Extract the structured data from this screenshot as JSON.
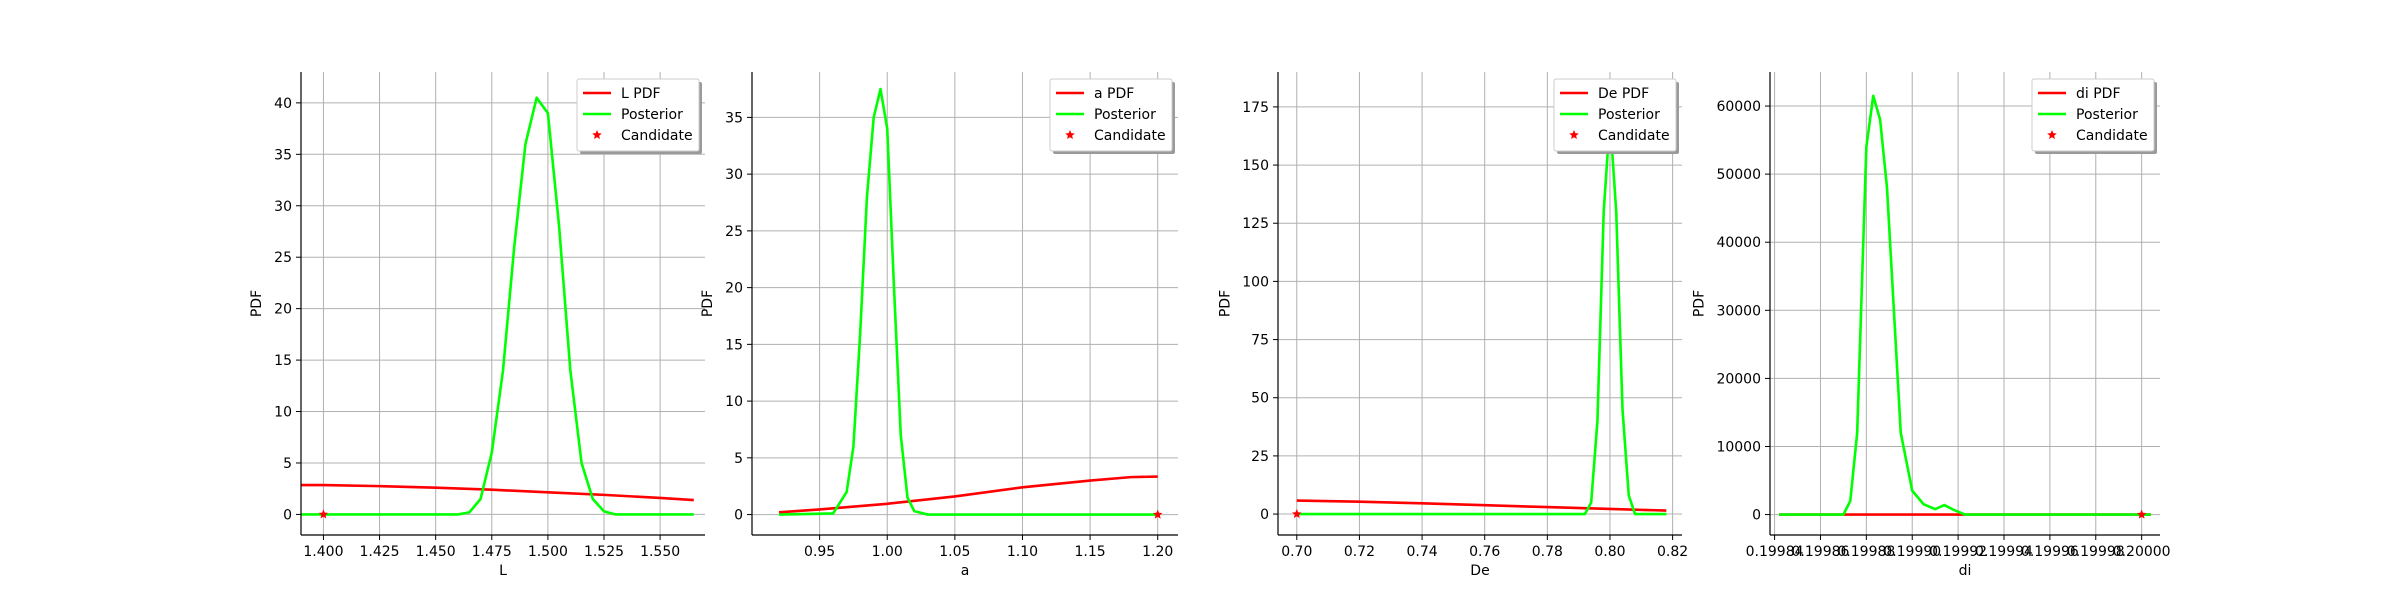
{
  "chart_data": [
    {
      "type": "line",
      "xlabel": "L",
      "ylabel": "PDF",
      "xlim": [
        1.39,
        1.57
      ],
      "ylim": [
        -2,
        43
      ],
      "xticks": [
        1.4,
        1.425,
        1.45,
        1.475,
        1.5,
        1.525,
        1.55
      ],
      "xtick_labels": [
        "1.400",
        "1.425",
        "1.450",
        "1.475",
        "1.500",
        "1.525",
        "1.550"
      ],
      "yticks": [
        0,
        5,
        10,
        15,
        20,
        25,
        30,
        35,
        40
      ],
      "ytick_labels": [
        "0",
        "5",
        "10",
        "15",
        "20",
        "25",
        "30",
        "35",
        "40"
      ],
      "grid": true,
      "legend_position": "top-right",
      "series": [
        {
          "name": "L PDF",
          "color": "#ff0000",
          "style": "line",
          "x": [
            1.39,
            1.4,
            1.425,
            1.45,
            1.475,
            1.5,
            1.525,
            1.55,
            1.565
          ],
          "y": [
            2.85,
            2.85,
            2.75,
            2.6,
            2.4,
            2.15,
            1.9,
            1.6,
            1.4
          ]
        },
        {
          "name": "Posterior",
          "color": "#00ff00",
          "style": "line",
          "x": [
            1.39,
            1.46,
            1.465,
            1.47,
            1.475,
            1.48,
            1.485,
            1.49,
            1.495,
            1.5,
            1.505,
            1.51,
            1.515,
            1.52,
            1.525,
            1.53,
            1.565
          ],
          "y": [
            0,
            0,
            0.2,
            1.5,
            6,
            14,
            26,
            36,
            40.5,
            39,
            28,
            14,
            5,
            1.5,
            0.3,
            0,
            0
          ]
        },
        {
          "name": "Candidate",
          "color": "#ff0000",
          "style": "marker",
          "x": [
            1.4
          ],
          "y": [
            0
          ]
        }
      ]
    },
    {
      "type": "line",
      "xlabel": "a",
      "ylabel": "PDF",
      "xlim": [
        0.9,
        1.215
      ],
      "ylim": [
        -1.8,
        39
      ],
      "xticks": [
        0.95,
        1.0,
        1.05,
        1.1,
        1.15,
        1.2
      ],
      "xtick_labels": [
        "0.95",
        "1.00",
        "1.05",
        "1.10",
        "1.15",
        "1.20"
      ],
      "yticks": [
        0,
        5,
        10,
        15,
        20,
        25,
        30,
        35
      ],
      "ytick_labels": [
        "0",
        "5",
        "10",
        "15",
        "20",
        "25",
        "30",
        "35"
      ],
      "grid": true,
      "legend_position": "top-right",
      "series": [
        {
          "name": "a PDF",
          "color": "#ff0000",
          "style": "line",
          "x": [
            0.92,
            0.95,
            1.0,
            1.05,
            1.1,
            1.15,
            1.18,
            1.2
          ],
          "y": [
            0.2,
            0.45,
            0.95,
            1.6,
            2.4,
            3.0,
            3.3,
            3.35
          ]
        },
        {
          "name": "Posterior",
          "color": "#00ff00",
          "style": "line",
          "x": [
            0.92,
            0.96,
            0.97,
            0.975,
            0.98,
            0.985,
            0.99,
            0.995,
            1.0,
            1.005,
            1.01,
            1.015,
            1.02,
            1.03,
            1.2
          ],
          "y": [
            0,
            0.1,
            2,
            6,
            16,
            28,
            35,
            37.5,
            34,
            20,
            7,
            1.5,
            0.3,
            0,
            0
          ]
        },
        {
          "name": "Candidate",
          "color": "#ff0000",
          "style": "marker",
          "x": [
            1.2
          ],
          "y": [
            0
          ]
        }
      ]
    },
    {
      "type": "line",
      "xlabel": "De",
      "ylabel": "PDF",
      "xlim": [
        0.694,
        0.823
      ],
      "ylim": [
        -9,
        190
      ],
      "xticks": [
        0.7,
        0.72,
        0.74,
        0.76,
        0.78,
        0.8,
        0.82
      ],
      "xtick_labels": [
        "0.70",
        "0.72",
        "0.74",
        "0.76",
        "0.78",
        "0.80",
        "0.82"
      ],
      "yticks": [
        0,
        25,
        50,
        75,
        100,
        125,
        150,
        175
      ],
      "ytick_labels": [
        "0",
        "25",
        "50",
        "75",
        "100",
        "125",
        "150",
        "175"
      ],
      "grid": true,
      "legend_position": "top-right",
      "series": [
        {
          "name": "De PDF",
          "color": "#ff0000",
          "style": "line",
          "x": [
            0.7,
            0.72,
            0.74,
            0.76,
            0.78,
            0.8,
            0.818
          ],
          "y": [
            5.8,
            5.3,
            4.6,
            3.8,
            3.0,
            2.2,
            1.5
          ]
        },
        {
          "name": "Posterior",
          "color": "#00ff00",
          "style": "line",
          "x": [
            0.7,
            0.792,
            0.794,
            0.796,
            0.798,
            0.8,
            0.802,
            0.804,
            0.806,
            0.808,
            0.818
          ],
          "y": [
            0,
            0,
            5,
            40,
            130,
            170,
            130,
            45,
            8,
            0,
            0
          ]
        },
        {
          "name": "Candidate",
          "color": "#ff0000",
          "style": "marker",
          "x": [
            0.7
          ],
          "y": [
            0
          ]
        }
      ]
    },
    {
      "type": "line",
      "xlabel": "di",
      "ylabel": "PDF",
      "xlim": [
        0.199838,
        0.200008
      ],
      "ylim": [
        -3000,
        65000
      ],
      "xticks": [
        0.19984,
        0.19986,
        0.19988,
        0.1999,
        0.19992,
        0.19994,
        0.19996,
        0.19998,
        0.2
      ],
      "xtick_labels": [
        "0.19984",
        "0.19986",
        "0.19988",
        "0.19990",
        "0.19992",
        "0.19994",
        "0.19996",
        "0.19998",
        "0.20000"
      ],
      "yticks": [
        0,
        10000,
        20000,
        30000,
        40000,
        50000,
        60000
      ],
      "ytick_labels": [
        "0",
        "10000",
        "20000",
        "30000",
        "40000",
        "50000",
        "60000"
      ],
      "grid": true,
      "legend_position": "top-right",
      "series": [
        {
          "name": "di PDF",
          "color": "#ff0000",
          "style": "line",
          "x": [
            0.199842,
            0.200004
          ],
          "y": [
            0,
            0
          ]
        },
        {
          "name": "Posterior",
          "color": "#00ff00",
          "style": "line",
          "x": [
            0.199842,
            0.19987,
            0.199873,
            0.199876,
            0.19988,
            0.199883,
            0.199886,
            0.199889,
            0.199892,
            0.199895,
            0.1999,
            0.199905,
            0.19991,
            0.199914,
            0.199918,
            0.199923,
            0.199928,
            0.200004
          ],
          "y": [
            0,
            0,
            2000,
            12000,
            54000,
            61500,
            58000,
            48000,
            30000,
            12000,
            3500,
            1500,
            800,
            1400,
            700,
            0,
            0,
            0
          ]
        },
        {
          "name": "Candidate",
          "color": "#ff0000",
          "style": "marker",
          "x": [
            0.2
          ],
          "y": [
            0
          ]
        }
      ]
    }
  ]
}
